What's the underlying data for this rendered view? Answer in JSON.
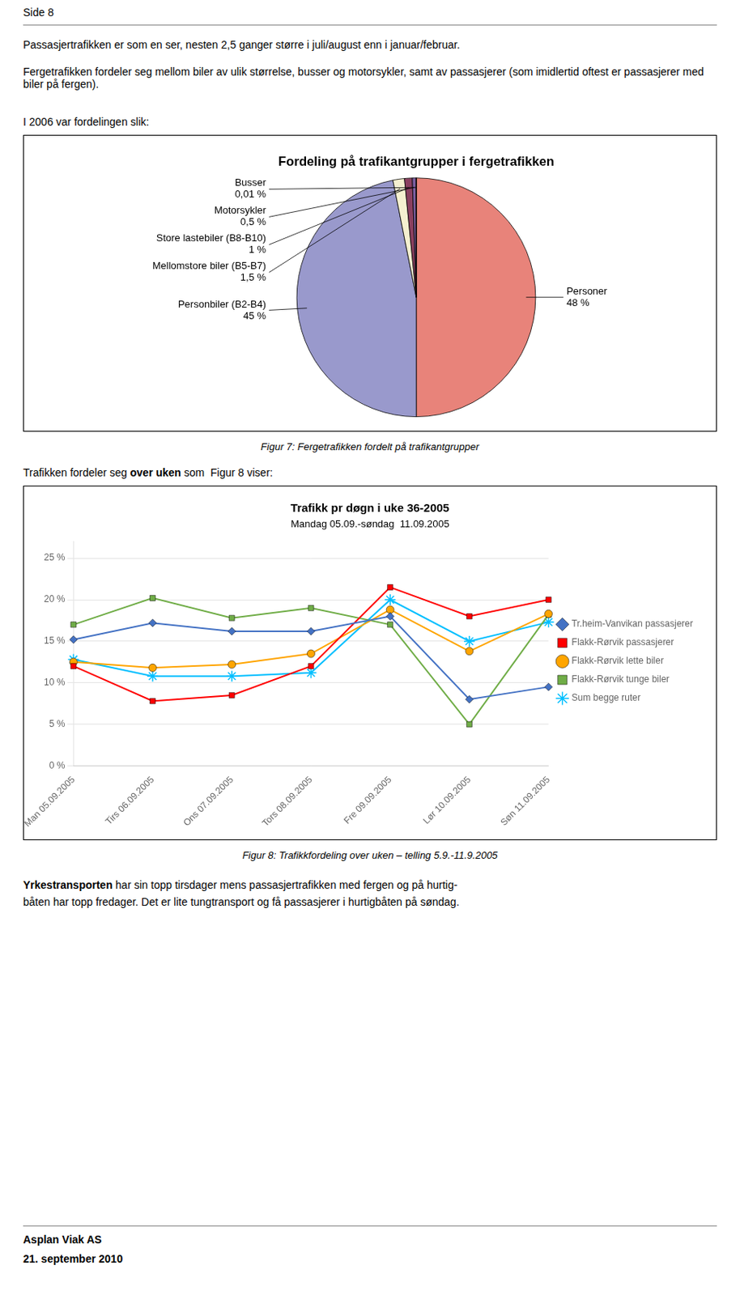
{
  "page_title": "Side 8",
  "intro": [
    "Passasjertrafikken er som en ser, nesten 2,5 ganger større i juli/august enn i januar/februar.",
    "Fergetrafikken fordeler seg mellom biler av ulik størrelse, busser og motorsykler, samt av passasjerer (som imidlertid oftest er passasjerer med biler på fergen).",
    "I 2006 var fordelingen slik:"
  ],
  "chart_data": [
    {
      "type": "pie",
      "title": "Fordeling på trafikantgrupper i fergetrafikken",
      "categories": [
        "Personer",
        "Personbiler (B2-B4)",
        "Mellomstore biler (B5-B7)",
        "Store lastebiler (B8-B10)",
        "Motorsykler",
        "Busser"
      ],
      "values": [
        48.0,
        45.0,
        1.5,
        1.0,
        0.5,
        0.01
      ],
      "value_labels": [
        "48 %",
        "45 %",
        "1,5 %",
        "1 %",
        "0,5 %",
        "0,01 %"
      ],
      "data_labels": true,
      "colors": [
        "#E8837A",
        "#9999CC",
        "#F5F0D0",
        "#8B4060",
        "#7B5EA0",
        "#C0A0C0"
      ]
    },
    {
      "type": "line",
      "title": "Trafikk pr døgn i uke 36-2005",
      "subtitle": "Mandag 05.09.-søndag  11.09.2005",
      "categories": [
        "Man 05.09.2005",
        "Tirs 06.09.2005",
        "Ons 07.09.2005",
        "Tors 08.09.2005",
        "Fre 09.09.2005",
        "Lør 10.09.2005",
        "Søn 11.09.2005"
      ],
      "series": [
        {
          "name": "Tr.heim-Vanvikan passasjerer",
          "color": "#4472C4",
          "marker": "diamond",
          "values": [
            15.2,
            17.2,
            16.2,
            16.2,
            18.0,
            8.0,
            9.5
          ]
        },
        {
          "name": "Flakk-Rørvik passasjerer",
          "color": "#FF0000",
          "marker": "square",
          "values": [
            12.0,
            7.8,
            8.5,
            12.0,
            21.5,
            18.0,
            20.0
          ]
        },
        {
          "name": "Flakk-Rørvik lette biler",
          "color": "#FFA500",
          "marker": "circle",
          "values": [
            12.5,
            11.8,
            12.2,
            13.5,
            18.8,
            13.8,
            18.3
          ]
        },
        {
          "name": "Flakk-Rørvik tunge biler",
          "color": "#70AD47",
          "marker": "square",
          "values": [
            17.0,
            20.2,
            17.8,
            19.0,
            17.0,
            5.0,
            18.2
          ]
        },
        {
          "name": "Sum begge ruter",
          "color": "#00BFFF",
          "marker": "star",
          "values": [
            12.8,
            10.8,
            10.8,
            11.2,
            20.0,
            15.0,
            17.3
          ]
        }
      ],
      "ylim": [
        0,
        27
      ],
      "yticks": [
        {
          "value": 0,
          "label": "0 %"
        },
        {
          "value": 5,
          "label": "5 %"
        },
        {
          "value": 10,
          "label": "10 %"
        },
        {
          "value": 15,
          "label": "15 %"
        },
        {
          "value": 20,
          "label": "20 %"
        },
        {
          "value": 25,
          "label": "25 %"
        }
      ],
      "grid": true,
      "legend": "right"
    }
  ],
  "captions": [
    "Figur 7: Fergetrafikken fordelt på trafikantgrupper",
    "Figur 8: Trafikkfordeling over uken – telling 5.9.-11.9.2005"
  ],
  "lead_in": [
    {
      "text": "Trafikken fordeler seg ",
      "bold": false
    },
    {
      "text": "over uken",
      "bold": true
    },
    {
      "text": " som  Figur 8 viser:",
      "bold": false
    }
  ],
  "footer": [
    [
      {
        "text": "Yrkestransporten",
        "bold": true
      },
      {
        "text": " har sin topp tirsdager mens passasjertrafikken med fergen og på hurtig-",
        "bold": false
      }
    ],
    [
      {
        "text": "båten har topp fredager. Det er lite tungtransport og få passasjerer i hurtigbåten på søndag.",
        "bold": false
      }
    ]
  ],
  "company": "Asplan Viak AS",
  "date": "21. september 2010"
}
